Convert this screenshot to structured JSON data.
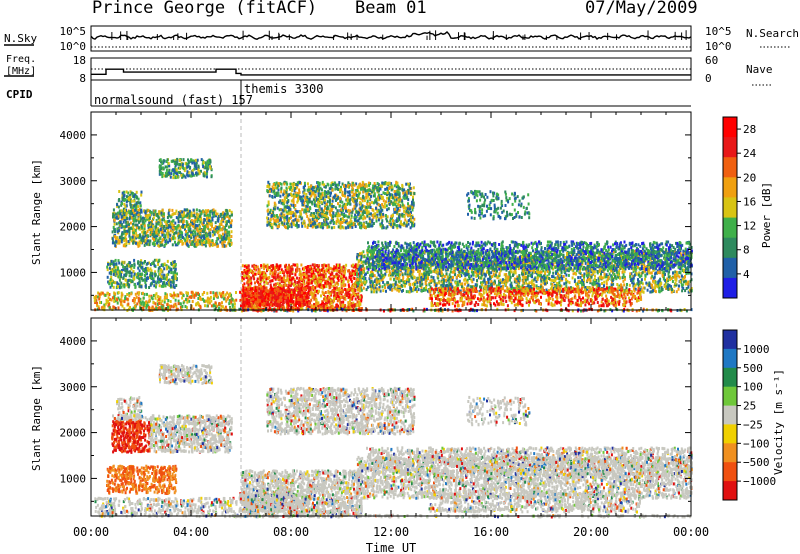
{
  "header": {
    "station": "Prince George (fitACF)",
    "beam": "Beam 01",
    "date": "07/May/2009"
  },
  "labels": {
    "nsky": "N.Sky",
    "freq_line1": "Freq.",
    "freq_line2": "[MHz]",
    "cpid": "CPID",
    "nsearch": "N.Search",
    "nave": "Nave",
    "cpid_prog1": "normalsound (fast) 157",
    "cpid_prog2": "themis 3300"
  },
  "colors": {
    "power": [
      "#1f1fe6",
      "#2060a8",
      "#2e8a5e",
      "#3fb04a",
      "#d8c414",
      "#f0a010",
      "#f06010",
      "#e81818",
      "#ff0000"
    ],
    "velocity": [
      "#2030a0",
      "#1f78c4",
      "#228b4a",
      "#6fc83a",
      "#c8c8c0",
      "#f0d000",
      "#f09020",
      "#f05010",
      "#e01010"
    ],
    "grey_scatter": "#c8c8c0"
  },
  "chart_data": [
    {
      "type": "line",
      "name": "noise-panel",
      "left_ticks": [
        "10^5",
        "10^0"
      ],
      "right_ticks": [
        "10^5",
        "10^0"
      ]
    },
    {
      "type": "line",
      "name": "frequency-panel",
      "left_ticks": [
        "18",
        "8"
      ],
      "right_ticks": [
        "60",
        "0"
      ],
      "x": [
        0,
        0.6,
        0.6,
        1.3,
        1.3,
        2.2,
        2.2,
        5.0,
        5.0,
        5.8,
        5.8,
        6.0,
        6.0,
        24
      ],
      "y": [
        10.6,
        10.6,
        12.9,
        12.9,
        11.6,
        11.6,
        11.6,
        11.6,
        12.9,
        12.9,
        11.0,
        11.0,
        10.3,
        10.3
      ]
    },
    {
      "type": "heatmap",
      "name": "power",
      "ylabel": "Slant Range [km]",
      "yticks": [
        "4000",
        "3000",
        "2000",
        "1000"
      ],
      "colorbar_label": "Power [dB]",
      "colorbar_ticks": [
        "28",
        "24",
        "20",
        "16",
        "12",
        "8",
        "4"
      ],
      "colorbar_range": [
        0,
        30
      ]
    },
    {
      "type": "heatmap",
      "name": "velocity",
      "ylabel": "Slant Range [km]",
      "yticks": [
        "4000",
        "3000",
        "2000",
        "1000"
      ],
      "colorbar_label": "Velocity [m s⁻¹]",
      "colorbar_ticks": [
        "1000",
        "500",
        "100",
        "25",
        "−25",
        "−100",
        "−500",
        "−1000"
      ]
    }
  ],
  "xaxis": {
    "ticks": [
      "00:00",
      "04:00",
      "08:00",
      "12:00",
      "16:00",
      "20:00",
      "00:00"
    ],
    "label": "Time UT"
  }
}
